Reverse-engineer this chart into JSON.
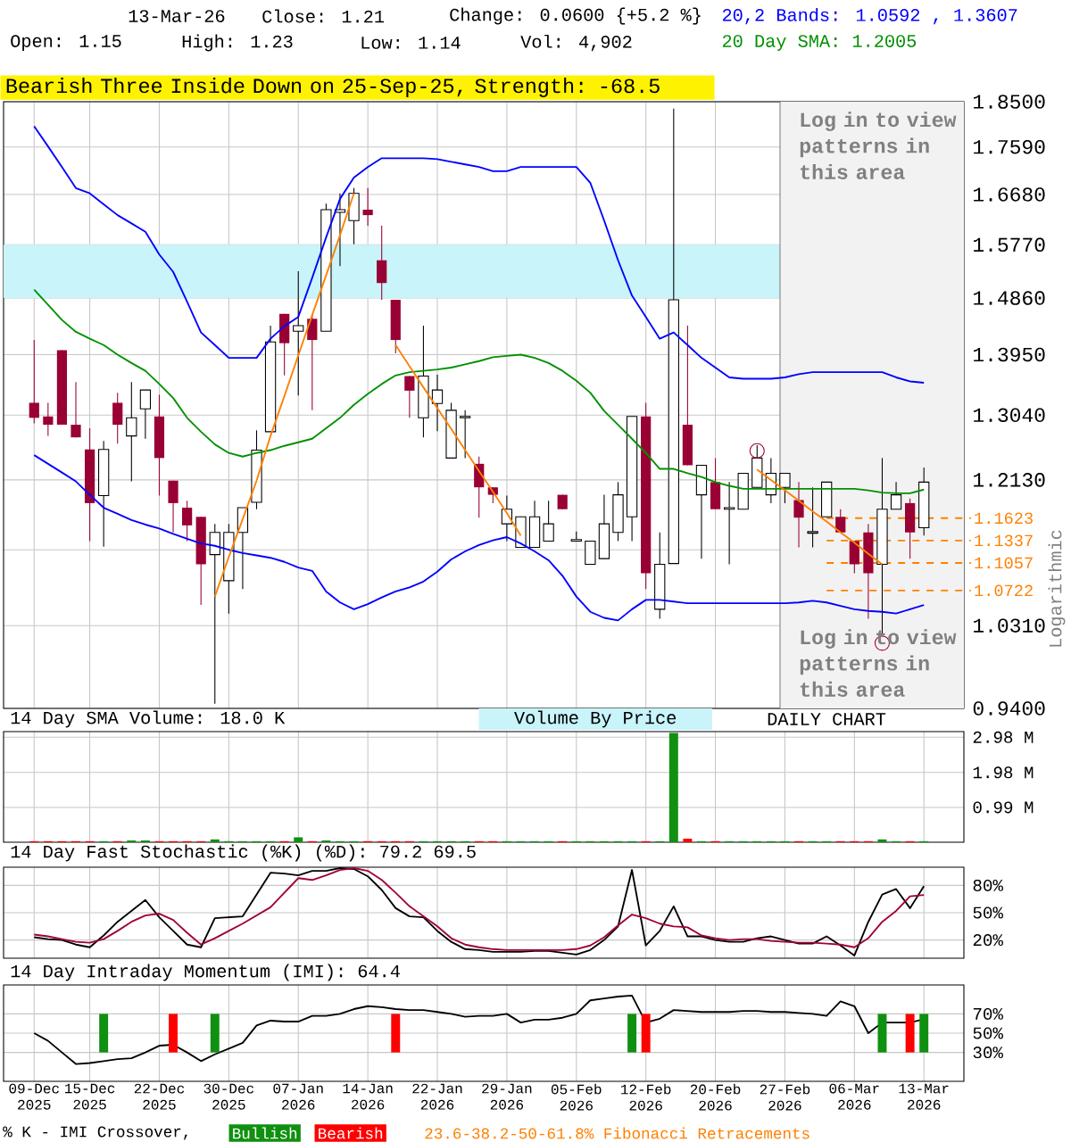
{
  "chart_data": [
    {
      "type": "candlestick",
      "title": "Bearish Three Inside Down on 25-Sep-25, Strength: -68.5",
      "ylabel": "Logarithmic",
      "categories": [
        "09-Dec 2025",
        null,
        null,
        null,
        "15-Dec 2025",
        null,
        null,
        null,
        null,
        "22-Dec 2025",
        null,
        null,
        null,
        null,
        "30-Dec 2025",
        null,
        null,
        null,
        null,
        "07-Jan 2026",
        null,
        null,
        null,
        null,
        "14-Jan 2026",
        null,
        null,
        null,
        null,
        "22-Jan 2026",
        null,
        null,
        null,
        null,
        "29-Jan 2026",
        null,
        null,
        null,
        null,
        "05-Feb 2026",
        null,
        null,
        null,
        null,
        "12-Feb 2026",
        null,
        null,
        null,
        null,
        "20-Feb 2026",
        null,
        null,
        null,
        null,
        "27-Feb 2026",
        null,
        null,
        null,
        null,
        "06-Mar 2026",
        null,
        null,
        null,
        null,
        "13-Mar 2026"
      ],
      "ohlc": [
        [
          1.322,
          1.418,
          1.292,
          1.3
        ],
        [
          1.302,
          1.322,
          1.274,
          1.29
        ],
        [
          1.402,
          1.402,
          1.29,
          1.29
        ],
        [
          1.29,
          1.353,
          1.272,
          1.272
        ],
        [
          1.255,
          1.285,
          1.133,
          1.182
        ],
        [
          1.192,
          1.267,
          1.126,
          1.255
        ],
        [
          1.322,
          1.337,
          1.263,
          1.29
        ],
        [
          1.274,
          1.353,
          1.211,
          1.3
        ],
        [
          1.313,
          1.341,
          1.27,
          1.341
        ],
        [
          1.302,
          1.334,
          1.192,
          1.243
        ],
        [
          1.212,
          1.212,
          1.144,
          1.182
        ],
        [
          1.176,
          1.185,
          1.133,
          1.153
        ],
        [
          1.164,
          1.164,
          1.055,
          1.104
        ],
        [
          1.116,
          1.155,
          0.945,
          1.144
        ],
        [
          1.084,
          1.155,
          1.045,
          1.144
        ],
        [
          1.144,
          1.176,
          1.074,
          1.176
        ],
        [
          1.183,
          1.282,
          1.174,
          1.254
        ],
        [
          1.28,
          1.441,
          1.28,
          1.415
        ],
        [
          1.46,
          1.46,
          1.363,
          1.413
        ],
        [
          1.432,
          1.531,
          1.333,
          1.441
        ],
        [
          1.452,
          1.46,
          1.311,
          1.418
        ],
        [
          1.432,
          1.651,
          1.432,
          1.64
        ],
        [
          1.635,
          1.67,
          1.54,
          1.64
        ],
        [
          1.62,
          1.68,
          1.578,
          1.67
        ],
        [
          1.64,
          1.68,
          1.611,
          1.63
        ],
        [
          1.55,
          1.611,
          1.483,
          1.511
        ],
        [
          1.483,
          1.483,
          1.397,
          1.418
        ],
        [
          1.362,
          1.362,
          1.3,
          1.34
        ],
        [
          1.3,
          1.441,
          1.272,
          1.362
        ],
        [
          1.321,
          1.364,
          1.281,
          1.341
        ],
        [
          1.243,
          1.322,
          1.243,
          1.311
        ],
        [
          1.3,
          1.311,
          1.243,
          1.302
        ],
        [
          1.235,
          1.245,
          1.163,
          1.203
        ],
        [
          1.203,
          1.203,
          1.182,
          1.193
        ],
        [
          1.155,
          1.192,
          1.133,
          1.174
        ],
        [
          1.125,
          1.164,
          1.125,
          1.164
        ],
        [
          1.125,
          1.185,
          1.125,
          1.164
        ],
        [
          1.133,
          1.185,
          1.133,
          1.155
        ],
        [
          1.193,
          1.193,
          1.174,
          1.174
        ],
        [
          1.133,
          1.145,
          1.133,
          1.135
        ],
        [
          1.104,
          1.133,
          1.104,
          1.133
        ],
        [
          1.111,
          1.193,
          1.111,
          1.155
        ],
        [
          1.144,
          1.21,
          1.133,
          1.193
        ],
        [
          1.164,
          1.302,
          1.133,
          1.302
        ],
        [
          1.302,
          1.322,
          1.074,
          1.093
        ],
        [
          1.05,
          1.144,
          1.039,
          1.104
        ],
        [
          1.105,
          1.836,
          1.105,
          1.483
        ],
        [
          1.29,
          1.441,
          1.233,
          1.233
        ],
        [
          1.193,
          1.233,
          1.111,
          1.233
        ],
        [
          1.21,
          1.243,
          1.174,
          1.174
        ],
        [
          1.174,
          1.21,
          1.104,
          1.176
        ],
        [
          1.174,
          1.222,
          1.174,
          1.222
        ],
        [
          1.203,
          1.261,
          1.203,
          1.243
        ],
        [
          1.193,
          1.243,
          1.182,
          1.222
        ],
        [
          1.203,
          1.222,
          1.182,
          1.222
        ],
        [
          1.186,
          1.21,
          1.125,
          1.163
        ],
        [
          1.143,
          1.203,
          1.125,
          1.145
        ],
        [
          1.164,
          1.21,
          1.164,
          1.21
        ],
        [
          1.164,
          1.174,
          1.144,
          1.144
        ],
        [
          1.133,
          1.133,
          1.093,
          1.104
        ],
        [
          1.144,
          1.155,
          1.039,
          1.093
        ],
        [
          1.104,
          1.243,
          1.021,
          1.174
        ],
        [
          1.174,
          1.21,
          1.174,
          1.193
        ],
        [
          1.182,
          1.188,
          1.111,
          1.144
        ],
        [
          1.15,
          1.23,
          1.14,
          1.21
        ]
      ],
      "series": [
        {
          "name": "20,2 Bands: 1.0592 , 1.3607",
          "type": "line",
          "color": "#0000ff",
          "values": [
            1.8,
            1.76,
            1.72,
            1.68,
            1.67,
            1.65,
            1.63,
            1.615,
            1.6,
            1.56,
            1.53,
            1.48,
            1.43,
            1.41,
            1.39,
            1.39,
            1.39,
            1.42,
            1.44,
            1.455,
            1.52,
            1.59,
            1.66,
            1.7,
            1.72,
            1.737,
            1.737,
            1.737,
            1.737,
            1.735,
            1.73,
            1.725,
            1.72,
            1.712,
            1.712,
            1.72,
            1.72,
            1.72,
            1.72,
            1.72,
            1.69,
            1.62,
            1.55,
            1.49,
            1.455,
            1.42,
            1.43,
            1.41,
            1.39,
            1.375,
            1.36,
            1.358,
            1.358,
            1.358,
            1.36,
            1.365,
            1.368,
            1.368,
            1.368,
            1.368,
            1.368,
            1.368,
            1.36,
            1.354,
            1.352
          ]
        },
        {
          "name": "20 Day SMA: 1.2005",
          "type": "line",
          "color": "#009000",
          "values": [
            1.5,
            1.475,
            1.45,
            1.431,
            1.42,
            1.41,
            1.395,
            1.382,
            1.37,
            1.35,
            1.329,
            1.3,
            1.28,
            1.262,
            1.25,
            1.245,
            1.25,
            1.254,
            1.26,
            1.265,
            1.27,
            1.285,
            1.3,
            1.319,
            1.335,
            1.35,
            1.363,
            1.368,
            1.37,
            1.372,
            1.375,
            1.38,
            1.385,
            1.391,
            1.393,
            1.395,
            1.39,
            1.382,
            1.37,
            1.355,
            1.337,
            1.31,
            1.29,
            1.27,
            1.25,
            1.228,
            1.228,
            1.222,
            1.217,
            1.21,
            1.205,
            1.201,
            1.201,
            1.201,
            1.201,
            1.201,
            1.201,
            1.201,
            1.201,
            1.201,
            1.199,
            1.196,
            1.195,
            1.195,
            1.2
          ]
        },
        {
          "type": "line",
          "color": "#0000ff",
          "values": [
            1.247,
            1.235,
            1.223,
            1.211,
            1.193,
            1.176,
            1.168,
            1.16,
            1.154,
            1.149,
            1.142,
            1.136,
            1.13,
            1.127,
            1.122,
            1.118,
            1.115,
            1.112,
            1.107,
            1.1,
            1.096,
            1.071,
            1.058,
            1.05,
            1.056,
            1.064,
            1.071,
            1.076,
            1.083,
            1.095,
            1.11,
            1.12,
            1.128,
            1.134,
            1.138,
            1.13,
            1.12,
            1.109,
            1.09,
            1.065,
            1.047,
            1.04,
            1.037,
            1.05,
            1.061,
            1.061,
            1.059,
            1.057,
            1.057,
            1.057,
            1.057,
            1.057,
            1.057,
            1.057,
            1.057,
            1.058,
            1.06,
            1.058,
            1.054,
            1.05,
            1.048,
            1.047,
            1.045,
            1.05,
            1.055
          ]
        },
        {
          "type": "line",
          "color": "#ff8000",
          "values": [
            null,
            null,
            null,
            null,
            null,
            null,
            null,
            null,
            null,
            null,
            null,
            null,
            null,
            1.065,
            1.113,
            1.161,
            1.212,
            1.274,
            1.332,
            1.394,
            1.458,
            1.524,
            1.594,
            1.67,
            null,
            null,
            null,
            null,
            null,
            null,
            null,
            null,
            null,
            null,
            null,
            null,
            null,
            null,
            null,
            null,
            null,
            null,
            null,
            null,
            null,
            null,
            null,
            null,
            null,
            null,
            null,
            null,
            null,
            null,
            null,
            null,
            null,
            null,
            null,
            null,
            null,
            null,
            null,
            null,
            null
          ]
        },
        {
          "type": "line",
          "color": "#ff8000",
          "values": [
            null,
            null,
            null,
            null,
            null,
            null,
            null,
            null,
            null,
            null,
            null,
            null,
            null,
            null,
            null,
            null,
            null,
            null,
            null,
            null,
            null,
            null,
            null,
            null,
            null,
            null,
            1.41,
            1.377,
            1.345,
            1.314,
            1.284,
            1.254,
            1.225,
            1.197,
            1.169,
            1.14,
            null,
            null,
            null,
            null,
            null,
            null,
            null,
            null,
            null,
            null,
            null,
            null,
            null,
            null,
            null,
            null,
            null,
            null,
            null,
            null,
            null,
            null,
            null,
            null,
            null,
            null,
            null,
            null,
            null
          ]
        },
        {
          "type": "line",
          "color": "#ff8000",
          "values": [
            null,
            null,
            null,
            null,
            null,
            null,
            null,
            null,
            null,
            null,
            null,
            null,
            null,
            null,
            null,
            null,
            null,
            null,
            null,
            null,
            null,
            null,
            null,
            null,
            null,
            null,
            null,
            null,
            null,
            null,
            null,
            null,
            null,
            null,
            null,
            null,
            null,
            null,
            null,
            null,
            null,
            null,
            null,
            null,
            null,
            null,
            null,
            null,
            null,
            null,
            null,
            null,
            1.227,
            1.213,
            1.199,
            1.185,
            1.171,
            1.158,
            1.144,
            1.131,
            1.117,
            1.104,
            null,
            null,
            null
          ]
        },
        {
          "type": "scatter",
          "marker": "circle",
          "color": "#a0003a",
          "values": [
            null,
            null,
            null,
            null,
            null,
            null,
            null,
            null,
            null,
            null,
            null,
            null,
            null,
            null,
            null,
            null,
            null,
            null,
            null,
            null,
            null,
            null,
            null,
            null,
            null,
            null,
            null,
            null,
            null,
            null,
            null,
            null,
            null,
            null,
            null,
            null,
            null,
            null,
            null,
            null,
            null,
            null,
            null,
            null,
            null,
            null,
            null,
            null,
            null,
            null,
            null,
            null,
            1.253,
            null,
            null,
            null,
            null,
            null,
            null,
            null,
            null,
            1.011,
            null,
            null,
            null
          ]
        }
      ],
      "ylim": [
        0.94,
        1.85
      ],
      "log": true,
      "grid": true,
      "legend": "top right",
      "tick_labels": "y",
      "yticks": [
        {
          "value": 0.94,
          "label": "0.9400"
        },
        {
          "value": 1.031,
          "label": "1.0310"
        },
        {
          "value": 1.122,
          "label": null
        },
        {
          "value": 1.213,
          "label": "1.2130"
        },
        {
          "value": 1.304,
          "label": "1.3040"
        },
        {
          "value": 1.395,
          "label": "1.3950"
        },
        {
          "value": 1.486,
          "label": "1.4860"
        },
        {
          "value": 1.577,
          "label": "1.5770"
        },
        {
          "value": 1.668,
          "label": "1.6680"
        },
        {
          "value": 1.759,
          "label": "1.7590"
        },
        {
          "value": 1.85,
          "label": "1.8500"
        }
      ],
      "ref_lines": [
        {
          "axis": "y",
          "value": 1.1623,
          "label": "1.1623",
          "color": "#ff8000",
          "line_style": "dashed"
        },
        {
          "axis": "y",
          "value": 1.1337,
          "label": "1.1337",
          "color": "#ff8000",
          "line_style": "dashed"
        },
        {
          "axis": "y",
          "value": 1.1057,
          "label": "1.1057",
          "color": "#ff8000",
          "line_style": "dashed"
        },
        {
          "axis": "y",
          "value": 1.0722,
          "label": "1.0722",
          "color": "#ff8000",
          "line_style": "dashed"
        }
      ],
      "bands": [
        {
          "axis": "y",
          "from": 1.486,
          "to": 1.577,
          "color": "#c8f4fa"
        },
        {
          "axis": "x",
          "from": "27-Feb 2026",
          "to": "13-Mar 2026",
          "color": "#f2f2f2"
        }
      ],
      "annotations": [
        "13-Mar-26",
        "Close: 1.21",
        "Change: 0.0600 {+5.2 %}",
        "Open: 1.15",
        "High: 1.23",
        "Low: 1.14",
        "Vol: 4,902",
        "Log in to view patterns in this area",
        "Log in to view patterns in this area",
        "23.6-38.2-50-61.8% Fibonacci Retracements"
      ]
    },
    {
      "type": "bar",
      "title": "14 Day SMA Volume: 18.0 K",
      "tick_labels": "y",
      "grid": true,
      "categories": [
        "09-Dec 2025",
        null,
        null,
        null,
        "15-Dec 2025",
        null,
        null,
        null,
        null,
        "22-Dec 2025",
        null,
        null,
        null,
        null,
        "30-Dec 2025",
        null,
        null,
        null,
        null,
        "07-Jan 2026",
        null,
        null,
        null,
        null,
        "14-Jan 2026",
        null,
        null,
        null,
        null,
        "22-Jan 2026",
        null,
        null,
        null,
        null,
        "29-Jan 2026",
        null,
        null,
        null,
        null,
        "05-Feb 2026",
        null,
        null,
        null,
        null,
        "12-Feb 2026",
        null,
        null,
        null,
        null,
        "20-Feb 2026",
        null,
        null,
        null,
        null,
        "27-Feb 2026",
        null,
        null,
        null,
        null,
        "06-Mar 2026",
        null,
        null,
        null,
        null,
        "13-Mar 2026"
      ],
      "values": [
        0.03,
        0.03,
        0.03,
        0.03,
        0.03,
        0.03,
        0.03,
        0.05,
        0.05,
        0.03,
        0.03,
        0.03,
        0.03,
        0.08,
        0.03,
        0.03,
        0.03,
        0.03,
        0.03,
        0.14,
        0.03,
        0.05,
        0.03,
        0.03,
        0.03,
        0.03,
        0.03,
        0.03,
        0.03,
        0.03,
        0.03,
        0.03,
        0.03,
        0.03,
        0.03,
        0.03,
        0.03,
        0.03,
        0.03,
        0.03,
        0.03,
        0.03,
        0.03,
        0.03,
        0.03,
        0.03,
        3.1,
        0.1,
        0.03,
        0.03,
        0.03,
        0.03,
        0.03,
        0.03,
        0.03,
        0.03,
        0.03,
        0.03,
        0.03,
        0.03,
        0.03,
        0.08,
        0.03,
        0.03,
        0.03
      ],
      "colors": [
        "#ff0000",
        "#ff0000",
        "#ff0000",
        "#ff0000",
        "#ff0000",
        "#109010",
        "#ff0000",
        "#109010",
        "#109010",
        "#ff0000",
        "#ff0000",
        "#ff0000",
        "#ff0000",
        "#109010",
        "#109010",
        "#109010",
        "#109010",
        "#109010",
        "#ff0000",
        "#109010",
        "#ff0000",
        "#109010",
        "#109010",
        "#109010",
        "#ff0000",
        "#ff0000",
        "#ff0000",
        "#ff0000",
        "#109010",
        "#109010",
        "#109010",
        "#109010",
        "#ff0000",
        "#ff0000",
        "#109010",
        "#109010",
        "#109010",
        "#109010",
        "#ff0000",
        "#109010",
        "#109010",
        "#109010",
        "#109010",
        "#109010",
        "#ff0000",
        "#109010",
        "#109010",
        "#ff0000",
        "#109010",
        "#ff0000",
        "#109010",
        "#109010",
        "#109010",
        "#109010",
        "#109010",
        "#ff0000",
        "#109010",
        "#109010",
        "#ff0000",
        "#ff0000",
        "#ff0000",
        "#109010",
        "#109010",
        "#ff0000",
        "#109010"
      ],
      "ylim": [
        0,
        3.14
      ],
      "yticks": [
        {
          "value": 0.99,
          "label": "0.99 M"
        },
        {
          "value": 1.98,
          "label": "1.98 M"
        },
        {
          "value": 2.98,
          "label": "2.98 M"
        }
      ],
      "annotations": [
        "Volume By Price",
        "DAILY CHART"
      ]
    },
    {
      "type": "line",
      "title": "14 Day Fast Stochastic (%K) (%D): 79.2 69.5",
      "tick_labels": "y",
      "grid": true,
      "categories": [
        "09-Dec 2025",
        null,
        null,
        null,
        "15-Dec 2025",
        null,
        null,
        null,
        null,
        "22-Dec 2025",
        null,
        null,
        null,
        null,
        "30-Dec 2025",
        null,
        null,
        null,
        null,
        "07-Jan 2026",
        null,
        null,
        null,
        null,
        "14-Jan 2026",
        null,
        null,
        null,
        null,
        "22-Jan 2026",
        null,
        null,
        null,
        null,
        "29-Jan 2026",
        null,
        null,
        null,
        null,
        "05-Feb 2026",
        null,
        null,
        null,
        null,
        "12-Feb 2026",
        null,
        null,
        null,
        null,
        "20-Feb 2026",
        null,
        null,
        null,
        null,
        "27-Feb 2026",
        null,
        null,
        null,
        null,
        "06-Mar 2026",
        null,
        null,
        null,
        null,
        "13-Mar 2026"
      ],
      "series": [
        {
          "color": "#000000",
          "values": [
            23,
            21,
            20,
            15,
            12,
            25,
            40,
            52,
            64,
            45,
            30,
            15,
            12,
            44,
            45,
            46,
            70,
            94,
            93,
            91,
            96,
            96,
            99,
            98,
            90,
            75,
            55,
            46,
            45,
            30,
            18,
            10,
            9,
            7,
            7,
            7,
            8,
            8,
            6,
            4,
            9,
            20,
            35,
            97,
            14,
            30,
            57,
            24,
            24,
            20,
            18,
            18,
            22,
            24,
            20,
            16,
            16,
            24,
            14,
            3,
            40,
            70,
            76,
            55,
            79.2
          ]
        },
        {
          "color": "#a0003a",
          "values": [
            26,
            24,
            21,
            18,
            17,
            21,
            30,
            40,
            47,
            49,
            42,
            28,
            15,
            22,
            30,
            38,
            47,
            56,
            72,
            88,
            86,
            91,
            97,
            99,
            96,
            86,
            72,
            57,
            46,
            35,
            22,
            15,
            12,
            10,
            9,
            9,
            9,
            9,
            9,
            10,
            14,
            23,
            36,
            48,
            44,
            38,
            35,
            34,
            25,
            22,
            20,
            21,
            21,
            19,
            18,
            17,
            17,
            16,
            15,
            12,
            22,
            40,
            52,
            68,
            69.5
          ]
        }
      ],
      "ylim": [
        0,
        100
      ],
      "yticks": [
        {
          "value": 20,
          "label": "20%"
        },
        {
          "value": 50,
          "label": "50%"
        },
        {
          "value": 80,
          "label": "80%"
        }
      ]
    },
    {
      "type": "line",
      "title": "14 Day Intraday Momentum (IMI): 64.4",
      "grid": true,
      "legend": "bottom",
      "categories": [
        "09-Dec 2025",
        null,
        null,
        null,
        "15-Dec 2025",
        null,
        null,
        null,
        null,
        "22-Dec 2025",
        null,
        null,
        null,
        null,
        "30-Dec 2025",
        null,
        null,
        null,
        null,
        "07-Jan 2026",
        null,
        null,
        null,
        null,
        "14-Jan 2026",
        null,
        null,
        null,
        null,
        "22-Jan 2026",
        null,
        null,
        null,
        null,
        "29-Jan 2026",
        null,
        null,
        null,
        null,
        "05-Feb 2026",
        null,
        null,
        null,
        null,
        "12-Feb 2026",
        null,
        null,
        null,
        null,
        "20-Feb 2026",
        null,
        null,
        null,
        null,
        "27-Feb 2026",
        null,
        null,
        null,
        null,
        "06-Mar 2026",
        null,
        null,
        null,
        null,
        "13-Mar 2026"
      ],
      "series": [
        {
          "color": "#000000",
          "values": [
            50,
            42,
            30,
            18,
            19,
            21,
            23,
            24,
            30,
            37,
            38,
            30,
            21,
            28,
            34,
            40,
            58,
            63,
            62,
            62,
            68,
            68,
            70,
            75,
            78,
            77,
            75,
            74,
            74,
            72,
            70,
            67,
            68,
            68,
            70,
            61,
            64,
            64,
            66,
            70,
            84,
            86,
            88,
            89,
            61,
            65,
            74,
            73,
            72,
            72,
            72,
            73,
            73,
            72,
            72,
            71,
            70,
            68,
            83,
            78,
            50,
            61,
            61,
            61,
            64.4
          ]
        },
        {
          "name": "Bullish",
          "type": "bar",
          "color": "#109010",
          "values": [
            null,
            null,
            null,
            null,
            null,
            40,
            null,
            null,
            null,
            null,
            null,
            null,
            null,
            40,
            null,
            null,
            null,
            null,
            null,
            null,
            null,
            null,
            null,
            null,
            null,
            null,
            null,
            null,
            null,
            null,
            null,
            null,
            null,
            null,
            null,
            null,
            null,
            null,
            null,
            null,
            null,
            null,
            null,
            40,
            null,
            null,
            null,
            null,
            null,
            null,
            null,
            null,
            null,
            null,
            null,
            null,
            null,
            null,
            null,
            null,
            null,
            40,
            null,
            null,
            40
          ],
          "base": [
            null,
            null,
            null,
            null,
            null,
            30,
            null,
            null,
            null,
            null,
            null,
            null,
            null,
            30,
            null,
            null,
            null,
            null,
            null,
            null,
            null,
            null,
            null,
            null,
            null,
            null,
            null,
            null,
            null,
            null,
            null,
            null,
            null,
            null,
            null,
            null,
            null,
            null,
            null,
            null,
            null,
            null,
            null,
            30,
            null,
            null,
            null,
            null,
            null,
            null,
            null,
            null,
            null,
            null,
            null,
            null,
            null,
            null,
            null,
            null,
            null,
            30,
            null,
            null,
            30
          ]
        },
        {
          "name": "Bearish",
          "type": "bar",
          "color": "#ff0000",
          "values": [
            null,
            null,
            null,
            null,
            null,
            null,
            null,
            null,
            null,
            null,
            40,
            null,
            null,
            null,
            null,
            null,
            null,
            null,
            null,
            null,
            null,
            null,
            null,
            null,
            null,
            null,
            40,
            null,
            null,
            null,
            null,
            null,
            null,
            null,
            null,
            null,
            null,
            null,
            null,
            null,
            null,
            null,
            null,
            null,
            40,
            null,
            null,
            null,
            null,
            null,
            null,
            null,
            null,
            null,
            null,
            null,
            null,
            null,
            null,
            null,
            null,
            null,
            null,
            40,
            null
          ],
          "base": [
            null,
            null,
            null,
            null,
            null,
            null,
            null,
            null,
            null,
            null,
            30,
            null,
            null,
            null,
            null,
            null,
            null,
            null,
            null,
            null,
            null,
            null,
            null,
            null,
            null,
            null,
            30,
            null,
            null,
            null,
            null,
            null,
            null,
            null,
            null,
            null,
            null,
            null,
            null,
            null,
            null,
            null,
            null,
            null,
            30,
            null,
            null,
            null,
            null,
            null,
            null,
            null,
            null,
            null,
            null,
            null,
            null,
            null,
            null,
            null,
            null,
            null,
            null,
            30,
            null
          ]
        }
      ],
      "ylim": [
        0,
        100
      ],
      "yticks": [
        {
          "value": 30,
          "label": "30%"
        },
        {
          "value": 50,
          "label": "50%"
        },
        {
          "value": 70,
          "label": "70%"
        }
      ],
      "annotations": [
        "% K - IMI Crossover,"
      ]
    }
  ]
}
